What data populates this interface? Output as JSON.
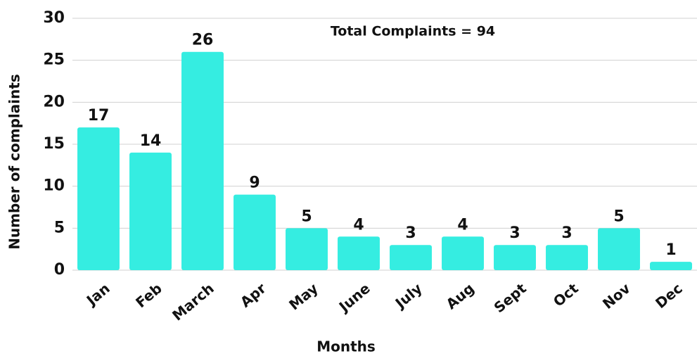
{
  "chart_data": {
    "type": "bar",
    "categories": [
      "Jan",
      "Feb",
      "March",
      "Apr",
      "May",
      "June",
      "July",
      "Aug",
      "Sept",
      "Oct",
      "Nov",
      "Dec"
    ],
    "values": [
      17,
      14,
      26,
      9,
      5,
      4,
      3,
      4,
      3,
      3,
      5,
      1
    ],
    "color": "#35ede1",
    "ylim": [
      0,
      30
    ],
    "yticks": [
      0,
      5,
      10,
      15,
      20,
      25,
      30
    ],
    "grid": true,
    "x_label": "Months",
    "y_label": "Number of complaints",
    "annotation": "Total Complaints  = 94"
  }
}
